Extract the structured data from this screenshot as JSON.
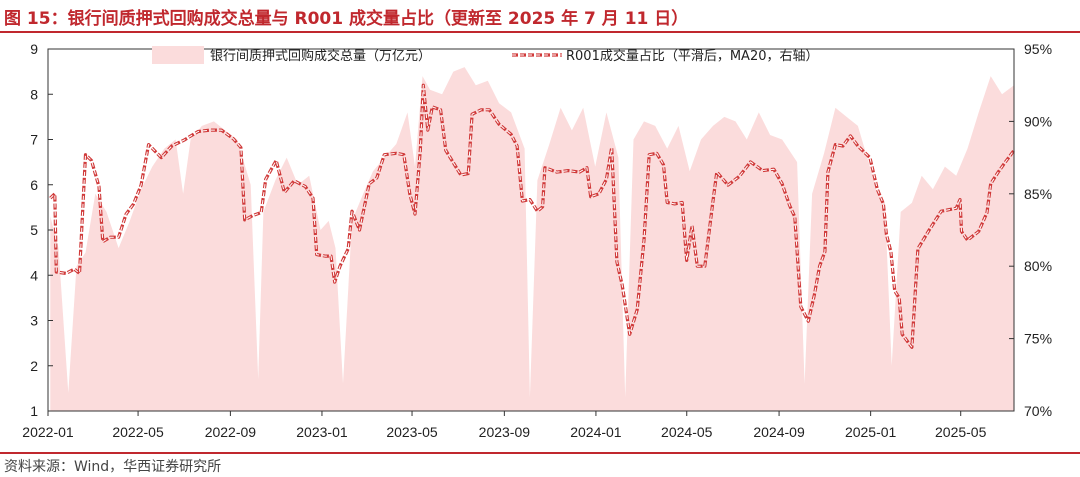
{
  "header": {
    "title": "图 15：银行间质押式回购成交总量与 R001 成交量占比（更新至 2025 年 7 月 11 日）"
  },
  "footer": {
    "source": "资料来源：Wind，华西证券研究所"
  },
  "colors": {
    "accent": "#c0282e",
    "area_fill": "#fbdcdc",
    "line": "#d03a3a"
  },
  "chart_data": {
    "type": "area",
    "xlim": [
      "2022-01-01",
      "2025-07-11"
    ],
    "x_tick_labels": [
      "2022-01",
      "2022-05",
      "2022-09",
      "2023-01",
      "2023-05",
      "2023-09",
      "2024-01",
      "2024-05",
      "2024-09",
      "2025-01",
      "2025-05"
    ],
    "y_left": {
      "lim": [
        1,
        9
      ],
      "tick_labels": [
        "1",
        "2",
        "3",
        "4",
        "5",
        "6",
        "7",
        "8",
        "9"
      ]
    },
    "y_right": {
      "lim": [
        70,
        95
      ],
      "unit": "%",
      "tick_labels": [
        "70%",
        "75%",
        "80%",
        "85%",
        "90%",
        "95%"
      ]
    },
    "grid": false,
    "legend_position": "top",
    "series": [
      {
        "name": "银行间质押式回购成交总量（万亿元）",
        "type": "area",
        "axis": "left",
        "points": [
          [
            "2022-01-04",
            5.3
          ],
          [
            "2022-01-15",
            4.6
          ],
          [
            "2022-01-28",
            1.4
          ],
          [
            "2022-02-08",
            4.2
          ],
          [
            "2022-02-20",
            4.5
          ],
          [
            "2022-03-05",
            5.8
          ],
          [
            "2022-03-20",
            5.4
          ],
          [
            "2022-04-05",
            4.6
          ],
          [
            "2022-04-20",
            5.2
          ],
          [
            "2022-05-05",
            5.9
          ],
          [
            "2022-05-20",
            6.4
          ],
          [
            "2022-06-05",
            6.8
          ],
          [
            "2022-06-20",
            7.0
          ],
          [
            "2022-06-30",
            5.8
          ],
          [
            "2022-07-10",
            7.0
          ],
          [
            "2022-07-25",
            7.3
          ],
          [
            "2022-08-10",
            7.4
          ],
          [
            "2022-08-25",
            7.2
          ],
          [
            "2022-09-10",
            7.0
          ],
          [
            "2022-09-28",
            6.0
          ],
          [
            "2022-10-08",
            1.7
          ],
          [
            "2022-10-15",
            5.4
          ],
          [
            "2022-10-31",
            6.1
          ],
          [
            "2022-11-15",
            6.6
          ],
          [
            "2022-11-30",
            6.0
          ],
          [
            "2022-12-15",
            6.2
          ],
          [
            "2022-12-30",
            5.0
          ],
          [
            "2023-01-10",
            5.2
          ],
          [
            "2023-01-19",
            4.6
          ],
          [
            "2023-01-29",
            1.6
          ],
          [
            "2023-02-10",
            5.2
          ],
          [
            "2023-02-25",
            5.8
          ],
          [
            "2023-03-10",
            6.3
          ],
          [
            "2023-03-25",
            6.6
          ],
          [
            "2023-04-10",
            6.9
          ],
          [
            "2023-04-25",
            7.6
          ],
          [
            "2023-05-05",
            6.4
          ],
          [
            "2023-05-15",
            8.4
          ],
          [
            "2023-05-25",
            8.1
          ],
          [
            "2023-06-10",
            8.0
          ],
          [
            "2023-06-25",
            8.5
          ],
          [
            "2023-07-10",
            8.6
          ],
          [
            "2023-07-25",
            8.2
          ],
          [
            "2023-08-10",
            8.3
          ],
          [
            "2023-08-25",
            7.8
          ],
          [
            "2023-09-10",
            7.6
          ],
          [
            "2023-09-28",
            6.8
          ],
          [
            "2023-10-05",
            1.3
          ],
          [
            "2023-10-15",
            6.1
          ],
          [
            "2023-10-31",
            6.9
          ],
          [
            "2023-11-15",
            7.7
          ],
          [
            "2023-11-30",
            7.2
          ],
          [
            "2023-12-15",
            7.7
          ],
          [
            "2023-12-31",
            6.4
          ],
          [
            "2024-01-15",
            7.6
          ],
          [
            "2024-01-31",
            6.6
          ],
          [
            "2024-02-09",
            1.3
          ],
          [
            "2024-02-20",
            7.0
          ],
          [
            "2024-03-05",
            7.4
          ],
          [
            "2024-03-20",
            7.3
          ],
          [
            "2024-04-05",
            6.8
          ],
          [
            "2024-04-20",
            7.3
          ],
          [
            "2024-05-05",
            6.3
          ],
          [
            "2024-05-20",
            7.0
          ],
          [
            "2024-06-05",
            7.3
          ],
          [
            "2024-06-20",
            7.5
          ],
          [
            "2024-07-05",
            7.4
          ],
          [
            "2024-07-20",
            7.0
          ],
          [
            "2024-08-05",
            7.6
          ],
          [
            "2024-08-20",
            7.1
          ],
          [
            "2024-09-05",
            7.0
          ],
          [
            "2024-09-25",
            6.5
          ],
          [
            "2024-10-05",
            1.6
          ],
          [
            "2024-10-15",
            5.8
          ],
          [
            "2024-10-31",
            6.7
          ],
          [
            "2024-11-15",
            7.7
          ],
          [
            "2024-11-30",
            7.5
          ],
          [
            "2024-12-15",
            7.3
          ],
          [
            "2024-12-31",
            6.4
          ],
          [
            "2025-01-10",
            5.8
          ],
          [
            "2025-01-20",
            5.6
          ],
          [
            "2025-01-29",
            2.0
          ],
          [
            "2025-02-10",
            5.4
          ],
          [
            "2025-02-25",
            5.6
          ],
          [
            "2025-03-10",
            6.2
          ],
          [
            "2025-03-25",
            5.9
          ],
          [
            "2025-04-10",
            6.4
          ],
          [
            "2025-04-25",
            6.2
          ],
          [
            "2025-05-10",
            6.8
          ],
          [
            "2025-05-25",
            7.6
          ],
          [
            "2025-06-10",
            8.4
          ],
          [
            "2025-06-25",
            8.0
          ],
          [
            "2025-07-11",
            8.2
          ]
        ]
      },
      {
        "name": "R001成交量占比（平滑后，MA20，右轴）",
        "type": "line",
        "axis": "right",
        "points": [
          [
            "2022-01-04",
            84.7
          ],
          [
            "2022-01-10",
            85.0
          ],
          [
            "2022-01-12",
            79.6
          ],
          [
            "2022-01-25",
            79.5
          ],
          [
            "2022-02-05",
            79.8
          ],
          [
            "2022-02-12",
            79.5
          ],
          [
            "2022-02-20",
            87.7
          ],
          [
            "2022-02-28",
            87.3
          ],
          [
            "2022-03-10",
            85.5
          ],
          [
            "2022-03-15",
            81.7
          ],
          [
            "2022-03-25",
            82.0
          ],
          [
            "2022-04-05",
            82.0
          ],
          [
            "2022-04-15",
            83.6
          ],
          [
            "2022-04-25",
            84.3
          ],
          [
            "2022-05-05",
            85.6
          ],
          [
            "2022-05-15",
            88.4
          ],
          [
            "2022-06-01",
            87.5
          ],
          [
            "2022-06-15",
            88.3
          ],
          [
            "2022-07-01",
            88.7
          ],
          [
            "2022-07-20",
            89.3
          ],
          [
            "2022-08-05",
            89.4
          ],
          [
            "2022-08-20",
            89.4
          ],
          [
            "2022-09-05",
            88.8
          ],
          [
            "2022-09-15",
            88.2
          ],
          [
            "2022-09-20",
            83.2
          ],
          [
            "2022-10-01",
            83.5
          ],
          [
            "2022-10-12",
            83.7
          ],
          [
            "2022-10-18",
            86.0
          ],
          [
            "2022-11-01",
            87.3
          ],
          [
            "2022-11-12",
            85.1
          ],
          [
            "2022-11-25",
            85.9
          ],
          [
            "2022-12-10",
            85.5
          ],
          [
            "2022-12-20",
            84.7
          ],
          [
            "2022-12-25",
            80.8
          ],
          [
            "2023-01-05",
            80.7
          ],
          [
            "2023-01-13",
            80.7
          ],
          [
            "2023-01-18",
            78.9
          ],
          [
            "2023-01-25",
            80.0
          ],
          [
            "2023-02-05",
            81.2
          ],
          [
            "2023-02-10",
            83.8
          ],
          [
            "2023-02-20",
            82.5
          ],
          [
            "2023-03-05",
            85.7
          ],
          [
            "2023-03-15",
            86.1
          ],
          [
            "2023-03-25",
            87.7
          ],
          [
            "2023-04-10",
            87.8
          ],
          [
            "2023-04-20",
            87.7
          ],
          [
            "2023-04-28",
            85.0
          ],
          [
            "2023-05-05",
            83.6
          ],
          [
            "2023-05-12",
            88.0
          ],
          [
            "2023-05-16",
            92.5
          ],
          [
            "2023-05-22",
            89.4
          ],
          [
            "2023-05-28",
            91.0
          ],
          [
            "2023-06-08",
            90.8
          ],
          [
            "2023-06-15",
            88.0
          ],
          [
            "2023-06-22",
            87.4
          ],
          [
            "2023-07-05",
            86.3
          ],
          [
            "2023-07-15",
            86.4
          ],
          [
            "2023-07-20",
            90.5
          ],
          [
            "2023-08-01",
            90.8
          ],
          [
            "2023-08-12",
            90.8
          ],
          [
            "2023-08-25",
            89.8
          ],
          [
            "2023-09-10",
            89.1
          ],
          [
            "2023-09-18",
            88.3
          ],
          [
            "2023-09-25",
            84.5
          ],
          [
            "2023-10-05",
            84.6
          ],
          [
            "2023-10-15",
            83.8
          ],
          [
            "2023-10-22",
            84.1
          ],
          [
            "2023-10-25",
            86.8
          ],
          [
            "2023-11-10",
            86.5
          ],
          [
            "2023-11-25",
            86.6
          ],
          [
            "2023-12-10",
            86.5
          ],
          [
            "2023-12-20",
            86.8
          ],
          [
            "2023-12-25",
            84.8
          ],
          [
            "2024-01-05",
            85.0
          ],
          [
            "2024-01-15",
            86.0
          ],
          [
            "2024-01-22",
            88.2
          ],
          [
            "2024-01-29",
            80.3
          ],
          [
            "2024-02-05",
            78.7
          ],
          [
            "2024-02-15",
            75.3
          ],
          [
            "2024-02-25",
            77.0
          ],
          [
            "2024-03-05",
            81.8
          ],
          [
            "2024-03-12",
            87.7
          ],
          [
            "2024-03-22",
            87.8
          ],
          [
            "2024-03-31",
            87.0
          ],
          [
            "2024-04-05",
            84.4
          ],
          [
            "2024-04-15",
            84.3
          ],
          [
            "2024-04-25",
            84.4
          ],
          [
            "2024-05-01",
            80.4
          ],
          [
            "2024-05-08",
            82.8
          ],
          [
            "2024-05-15",
            80.0
          ],
          [
            "2024-05-25",
            80.0
          ],
          [
            "2024-06-05",
            84.5
          ],
          [
            "2024-06-10",
            86.5
          ],
          [
            "2024-06-25",
            85.6
          ],
          [
            "2024-07-10",
            86.2
          ],
          [
            "2024-07-25",
            87.2
          ],
          [
            "2024-08-10",
            86.6
          ],
          [
            "2024-08-25",
            86.7
          ],
          [
            "2024-09-05",
            85.7
          ],
          [
            "2024-09-15",
            84.2
          ],
          [
            "2024-09-22",
            83.4
          ],
          [
            "2024-09-30",
            77.2
          ],
          [
            "2024-10-10",
            76.2
          ],
          [
            "2024-10-18",
            78.0
          ],
          [
            "2024-10-25",
            80.0
          ],
          [
            "2024-11-01",
            81.0
          ],
          [
            "2024-11-05",
            86.5
          ],
          [
            "2024-11-15",
            88.4
          ],
          [
            "2024-11-25",
            88.3
          ],
          [
            "2024-12-05",
            89.0
          ],
          [
            "2024-12-15",
            88.3
          ],
          [
            "2024-12-31",
            87.5
          ],
          [
            "2025-01-10",
            85.3
          ],
          [
            "2025-01-18",
            84.3
          ],
          [
            "2025-01-22",
            82.2
          ],
          [
            "2025-01-28",
            81.0
          ],
          [
            "2025-02-02",
            78.3
          ],
          [
            "2025-02-08",
            77.8
          ],
          [
            "2025-02-12",
            75.3
          ],
          [
            "2025-02-25",
            74.4
          ],
          [
            "2025-03-05",
            81.2
          ],
          [
            "2025-03-20",
            82.5
          ],
          [
            "2025-04-05",
            83.8
          ],
          [
            "2025-04-25",
            84.0
          ],
          [
            "2025-04-30",
            84.6
          ],
          [
            "2025-05-02",
            82.4
          ],
          [
            "2025-05-10",
            81.8
          ],
          [
            "2025-05-25",
            82.4
          ],
          [
            "2025-06-05",
            83.7
          ],
          [
            "2025-06-10",
            85.7
          ],
          [
            "2025-06-20",
            86.5
          ],
          [
            "2025-07-01",
            87.3
          ],
          [
            "2025-07-11",
            88.0
          ]
        ]
      }
    ]
  }
}
